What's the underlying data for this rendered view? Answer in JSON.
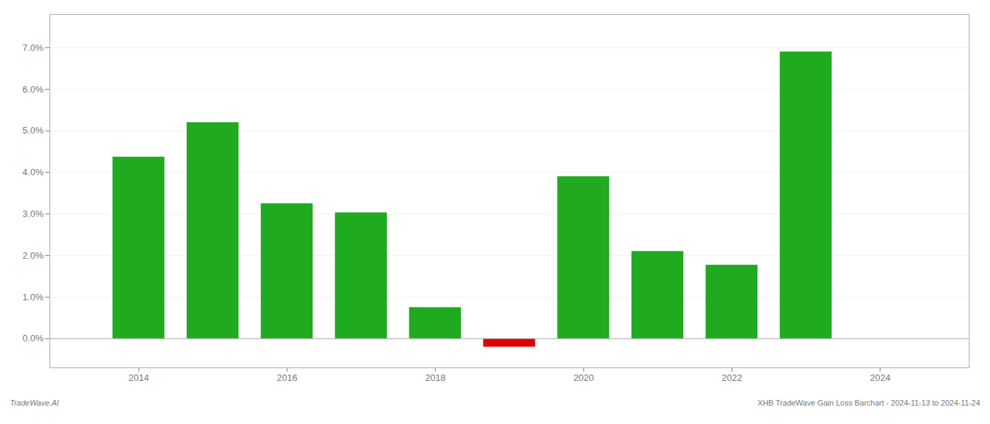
{
  "chart_data": {
    "type": "bar",
    "x": [
      2014,
      2015,
      2016,
      2017,
      2018,
      2019,
      2020,
      2021,
      2022,
      2023
    ],
    "values": [
      0.0437,
      0.052,
      0.0325,
      0.0303,
      0.0075,
      -0.002,
      0.039,
      0.021,
      0.0177,
      0.069
    ],
    "colors": [
      "#1faa1f",
      "#1faa1f",
      "#1faa1f",
      "#1faa1f",
      "#1faa1f",
      "#dd0000",
      "#1faa1f",
      "#1faa1f",
      "#1faa1f",
      "#1faa1f"
    ],
    "xlim": [
      2012.8,
      2025.2
    ],
    "xticks": [
      2014,
      2016,
      2018,
      2020,
      2022,
      2024
    ],
    "ylim": [
      -0.007,
      0.078
    ],
    "yticks": [
      {
        "value": 0.0,
        "label": "0.0%"
      },
      {
        "value": 0.01,
        "label": "1.0%"
      },
      {
        "value": 0.02,
        "label": "2.0%"
      },
      {
        "value": 0.03,
        "label": "3.0%"
      },
      {
        "value": 0.04,
        "label": "4.0%"
      },
      {
        "value": 0.05,
        "label": "5.0%"
      },
      {
        "value": 0.06,
        "label": "6.0%"
      },
      {
        "value": 0.07,
        "label": "7.0%"
      }
    ],
    "grid": true,
    "annotations": [
      "TradeWave.AI",
      "XHB TradeWave Gain Loss Barchart - 2024-11-13 to 2024-11-24"
    ]
  }
}
